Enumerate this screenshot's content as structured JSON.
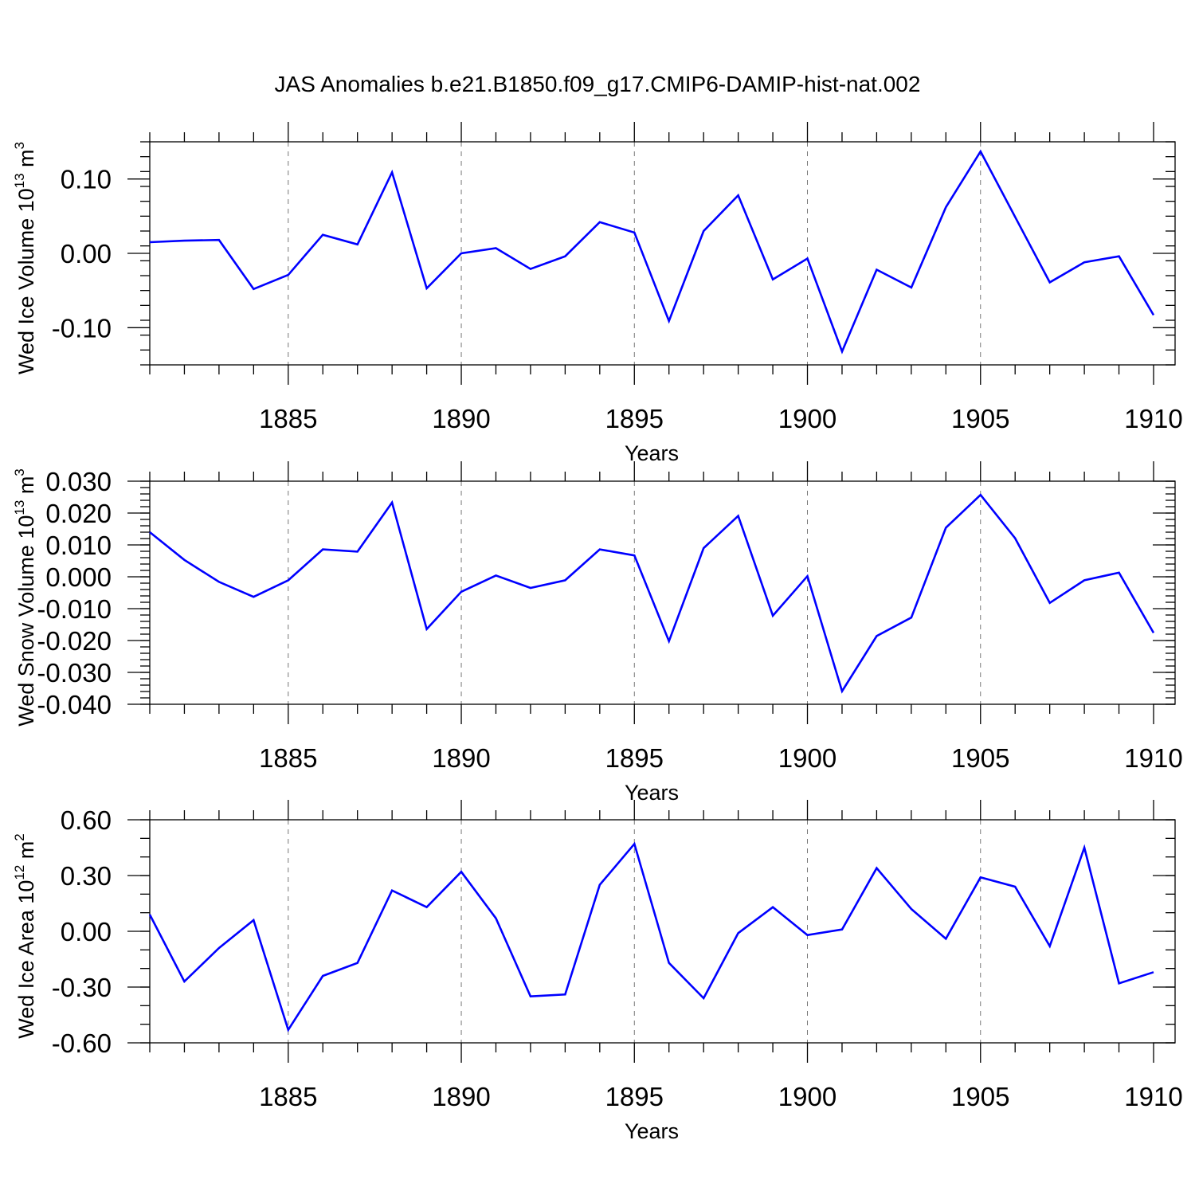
{
  "chart_data": {
    "title": "JAS Anomalies b.e21.B1850.f09_g17.CMIP6-DAMIP-hist-nat.002",
    "charts": [
      {
        "type": "line",
        "name": "ice-volume",
        "ylabel_main": "Wed Ice Volume 10",
        "ylabel_exp": "13",
        "ylabel_unit": " m",
        "ylabel_unit_exp": "3",
        "xlabel": "Years",
        "xlim": [
          1881,
          1910
        ],
        "ylim": [
          -0.15,
          0.15
        ],
        "xticks": [
          1885,
          1890,
          1895,
          1900,
          1905,
          1910
        ],
        "xtick_labels": [
          "1885",
          "1890",
          "1895",
          "1900",
          "1905",
          "1910"
        ],
        "yticks": [
          0.1,
          0.0,
          -0.1
        ],
        "ytick_labels": [
          "0.10",
          "0.00",
          "-0.10"
        ],
        "yminor_step": 0.02,
        "grid_x": true,
        "x": [
          1881,
          1882,
          1883,
          1884,
          1885,
          1886,
          1887,
          1888,
          1889,
          1890,
          1891,
          1892,
          1893,
          1894,
          1895,
          1896,
          1897,
          1898,
          1899,
          1900,
          1901,
          1902,
          1903,
          1904,
          1905,
          1906,
          1907,
          1908,
          1909,
          1910
        ],
        "values": [
          0.015,
          0.017,
          0.018,
          -0.048,
          -0.029,
          0.025,
          0.012,
          0.109,
          -0.047,
          0.0,
          0.007,
          -0.021,
          -0.004,
          0.042,
          0.028,
          -0.091,
          0.03,
          0.078,
          -0.035,
          -0.007,
          -0.132,
          -0.022,
          -0.046,
          0.062,
          0.137,
          0.049,
          -0.039,
          -0.012,
          -0.004,
          -0.083
        ]
      },
      {
        "type": "line",
        "name": "snow-volume",
        "ylabel_main": "Wed Snow Volume 10",
        "ylabel_exp": "13",
        "ylabel_unit": " m",
        "ylabel_unit_exp": "3",
        "xlabel": "Years",
        "xlim": [
          1881,
          1910
        ],
        "ylim": [
          -0.04,
          0.03
        ],
        "xticks": [
          1885,
          1890,
          1895,
          1900,
          1905,
          1910
        ],
        "xtick_labels": [
          "1885",
          "1890",
          "1895",
          "1900",
          "1905",
          "1910"
        ],
        "yticks": [
          0.03,
          0.02,
          0.01,
          0.0,
          -0.01,
          -0.02,
          -0.03,
          -0.04
        ],
        "ytick_labels": [
          "0.030",
          "0.020",
          "0.010",
          "0.000",
          "-0.010",
          "-0.020",
          "-0.030",
          "-0.040"
        ],
        "yminor_step": 0.002,
        "grid_x": true,
        "x": [
          1881,
          1882,
          1883,
          1884,
          1885,
          1886,
          1887,
          1888,
          1889,
          1890,
          1891,
          1892,
          1893,
          1894,
          1895,
          1896,
          1897,
          1898,
          1899,
          1900,
          1901,
          1902,
          1903,
          1904,
          1905,
          1906,
          1907,
          1908,
          1909,
          1910
        ],
        "values": [
          0.014,
          0.0053,
          -0.0016,
          -0.0063,
          -0.0011,
          0.0086,
          0.0079,
          0.0233,
          -0.0164,
          -0.0047,
          0.0004,
          -0.0035,
          -0.0011,
          0.0086,
          0.0067,
          -0.0202,
          0.009,
          0.0191,
          -0.0122,
          0.0002,
          -0.0359,
          -0.0186,
          -0.0128,
          0.0154,
          0.0257,
          0.0121,
          -0.0082,
          -0.0011,
          0.0013,
          -0.0176
        ]
      },
      {
        "type": "line",
        "name": "ice-area",
        "ylabel_main": "Wed Ice Area 10",
        "ylabel_exp": "12",
        "ylabel_unit": " m",
        "ylabel_unit_exp": "2",
        "xlabel": "Years",
        "xlim": [
          1881,
          1910
        ],
        "ylim": [
          -0.6,
          0.6
        ],
        "xticks": [
          1885,
          1890,
          1895,
          1900,
          1905,
          1910
        ],
        "xtick_labels": [
          "1885",
          "1890",
          "1895",
          "1900",
          "1905",
          "1910"
        ],
        "yticks": [
          0.6,
          0.3,
          0.0,
          -0.3,
          -0.6
        ],
        "ytick_labels": [
          "0.60",
          "0.30",
          "0.00",
          "-0.30",
          "-0.60"
        ],
        "yminor_step": 0.1,
        "grid_x": true,
        "x": [
          1881,
          1882,
          1883,
          1884,
          1885,
          1886,
          1887,
          1888,
          1889,
          1890,
          1891,
          1892,
          1893,
          1894,
          1895,
          1896,
          1897,
          1898,
          1899,
          1900,
          1901,
          1902,
          1903,
          1904,
          1905,
          1906,
          1907,
          1908,
          1909,
          1910
        ],
        "values": [
          0.09,
          -0.27,
          -0.09,
          0.06,
          -0.53,
          -0.24,
          -0.17,
          0.22,
          0.13,
          0.32,
          0.07,
          -0.35,
          -0.34,
          0.25,
          0.47,
          -0.17,
          -0.36,
          -0.01,
          0.13,
          -0.02,
          0.01,
          0.34,
          0.12,
          -0.04,
          0.29,
          0.24,
          -0.08,
          0.45,
          -0.28,
          -0.22
        ]
      }
    ]
  }
}
